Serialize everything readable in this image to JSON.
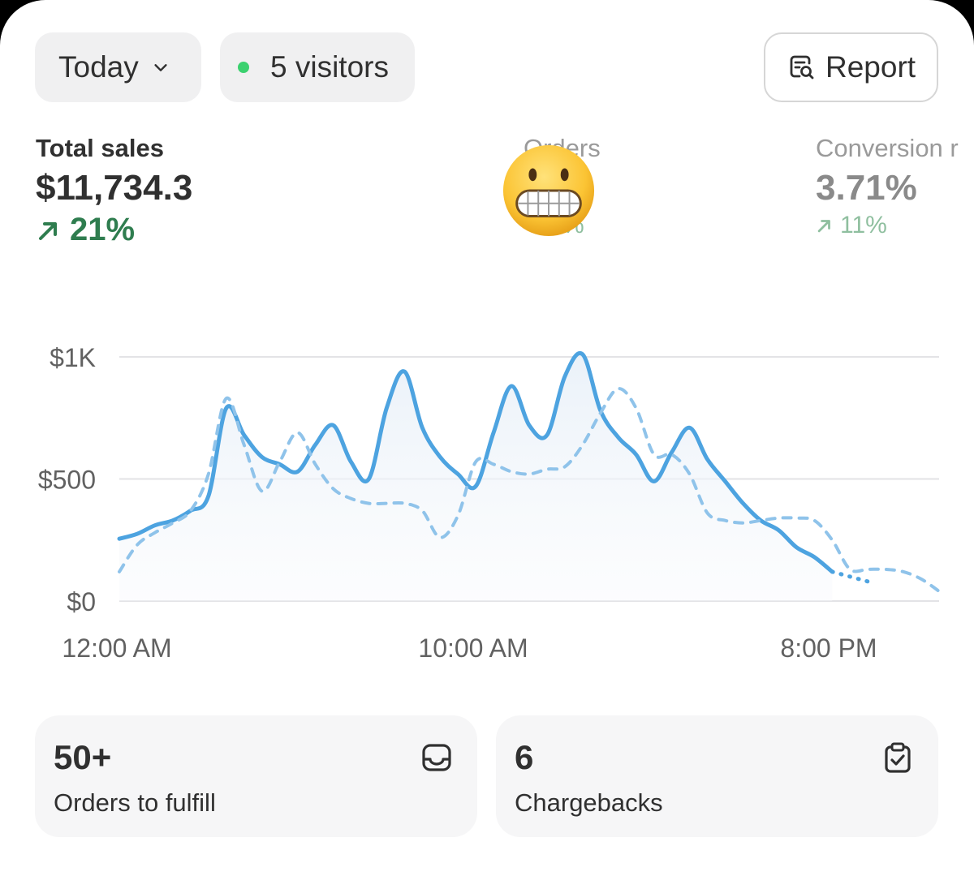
{
  "filters": {
    "period_label": "Today",
    "visitors_label": "5 visitors"
  },
  "actions": {
    "report_label": "Report"
  },
  "metrics": [
    {
      "label": "Total sales",
      "value": "$11,734.3",
      "change": "21%"
    },
    {
      "label": "Orders",
      "value": "",
      "change": "%"
    },
    {
      "label": "Conversion r",
      "value": "3.71%",
      "change": "11%"
    }
  ],
  "colors": {
    "accent": "#4da3e0",
    "positive": "#2f7d4f",
    "live_dot": "#3bd16f"
  },
  "icons": {
    "period": "chevron-down-icon",
    "visitors": "live-dot-icon",
    "report": "report-search-icon",
    "change": "arrow-up-right-icon",
    "orders_tile": "inbox-icon",
    "chargebacks_tile": "clipboard-check-icon",
    "overlay": "grimacing-face-emoji"
  },
  "chart_data": {
    "type": "line",
    "x_ticks": [
      "12:00 AM",
      "10:00 AM",
      "8:00 PM"
    ],
    "y_ticks": [
      "$0",
      "$500",
      "$1K"
    ],
    "ylim": [
      0,
      1000
    ],
    "x_range_hours": [
      0,
      23
    ],
    "grid": true,
    "series": [
      {
        "style": "solid",
        "x": [
          0,
          0.5,
          1,
          1.5,
          2,
          2.5,
          3,
          3.5,
          4,
          4.5,
          5,
          5.5,
          6,
          6.5,
          7,
          7.5,
          8,
          8.5,
          9,
          9.5,
          10,
          10.5,
          11,
          11.5,
          12,
          12.5,
          13,
          13.5,
          14,
          14.5,
          15,
          15.5,
          16,
          16.5,
          17,
          17.5,
          18,
          18.5,
          19,
          19.5,
          20
        ],
        "values": [
          255,
          275,
          310,
          330,
          370,
          430,
          790,
          680,
          590,
          560,
          530,
          640,
          720,
          570,
          500,
          790,
          940,
          710,
          590,
          520,
          470,
          690,
          880,
          720,
          680,
          920,
          1010,
          780,
          670,
          600,
          490,
          610,
          710,
          580,
          490,
          400,
          330,
          290,
          220,
          180,
          120
        ]
      },
      {
        "style": "dotted",
        "x": [
          20,
          20.5,
          21
        ],
        "values": [
          120,
          100,
          80
        ]
      },
      {
        "style": "dashed",
        "x": [
          0,
          0.5,
          1,
          1.5,
          2,
          2.5,
          3,
          3.5,
          4,
          4.5,
          5,
          5.5,
          6,
          6.5,
          7,
          7.5,
          8,
          8.5,
          9,
          9.5,
          10,
          10.5,
          11,
          11.5,
          12,
          12.5,
          13,
          13.5,
          14,
          14.5,
          15,
          15.5,
          16,
          16.5,
          17,
          17.5,
          18,
          18.5,
          19,
          19.5,
          20,
          20.5,
          21,
          21.5,
          22,
          22.5,
          23
        ],
        "values": [
          120,
          230,
          280,
          320,
          370,
          520,
          830,
          640,
          450,
          570,
          690,
          560,
          460,
          420,
          400,
          400,
          400,
          370,
          260,
          350,
          570,
          560,
          530,
          520,
          540,
          550,
          640,
          770,
          870,
          790,
          600,
          600,
          520,
          360,
          330,
          320,
          330,
          340,
          340,
          330,
          250,
          130,
          130,
          130,
          120,
          90,
          40
        ]
      }
    ]
  },
  "tiles": [
    {
      "count": "50+",
      "label": "Orders to fulfill"
    },
    {
      "count": "6",
      "label": "Chargebacks"
    }
  ]
}
